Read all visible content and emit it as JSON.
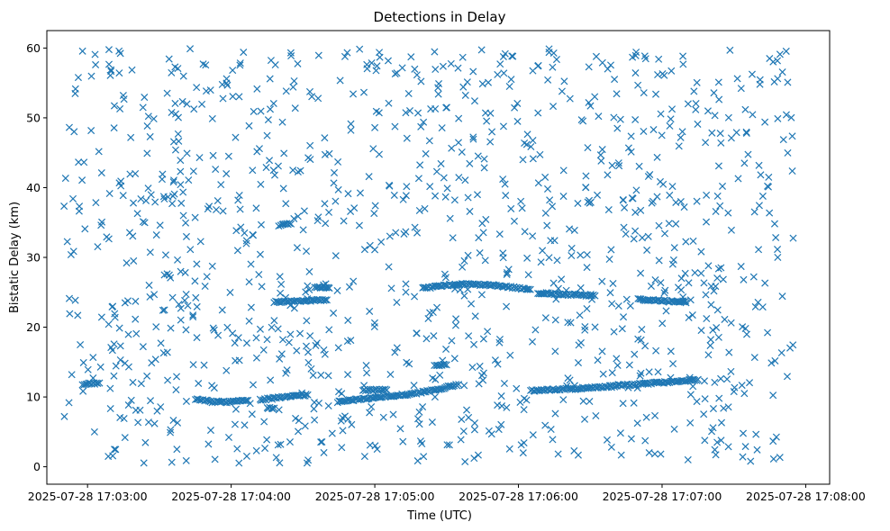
{
  "chart_data": {
    "type": "scatter",
    "title": "Detections in Delay",
    "xlabel": "Time (UTC)",
    "ylabel": "Bistatic Delay (km)",
    "marker": "x",
    "color": "#1f77b4",
    "grid": false,
    "legend": "none",
    "x_unit": "seconds after 2025-07-28 17:03:00 UTC",
    "xlim": [
      -17,
      310
    ],
    "ylim": [
      -2.5,
      62.5
    ],
    "x_ticks": [
      0,
      60,
      120,
      180,
      240,
      300
    ],
    "x_tick_labels": [
      "2025-07-28 17:03:00",
      "2025-07-28 17:04:00",
      "2025-07-28 17:05:00",
      "2025-07-28 17:06:00",
      "2025-07-28 17:07:00",
      "2025-07-28 17:08:00"
    ],
    "y_ticks": [
      0,
      10,
      20,
      30,
      40,
      50,
      60
    ],
    "y_tick_labels": [
      "0",
      "10",
      "20",
      "30",
      "40",
      "50",
      "60"
    ],
    "x_data_range": [
      -10,
      295
    ],
    "y_data_range": [
      0.5,
      60
    ],
    "noise_points_approx": 1150,
    "tracks": [
      {
        "x": [
          45,
          52,
          60,
          67
        ],
        "y": [
          9.7,
          9.3,
          9.3,
          9.5
        ]
      },
      {
        "x": [
          72,
          82,
          92
        ],
        "y": [
          9.6,
          10.0,
          10.3
        ]
      },
      {
        "x": [
          75,
          78
        ],
        "y": [
          8.4,
          8.4
        ]
      },
      {
        "x": [
          105,
          115,
          125,
          135,
          145,
          155
        ],
        "y": [
          9.4,
          9.7,
          10.1,
          10.4,
          11.0,
          11.8
        ]
      },
      {
        "x": [
          115,
          125
        ],
        "y": [
          11.0,
          11.0
        ]
      },
      {
        "x": [
          185,
          205,
          225,
          245,
          255
        ],
        "y": [
          10.9,
          11.2,
          11.7,
          12.2,
          12.5
        ]
      },
      {
        "x": [
          140,
          155,
          170,
          185
        ],
        "y": [
          25.6,
          26.2,
          26.0,
          25.4
        ]
      },
      {
        "x": [
          188,
          200,
          212
        ],
        "y": [
          24.9,
          24.7,
          24.5
        ]
      },
      {
        "x": [
          230,
          240,
          250
        ],
        "y": [
          24.0,
          23.8,
          23.5
        ]
      },
      {
        "x": [
          145,
          150
        ],
        "y": [
          14.5,
          14.6
        ]
      },
      {
        "x": [
          -2,
          5
        ],
        "y": [
          11.8,
          12.0
        ]
      },
      {
        "x": [
          80,
          85
        ],
        "y": [
          34.6,
          34.8
        ]
      },
      {
        "x": [
          95,
          101
        ],
        "y": [
          25.8,
          25.6
        ]
      },
      {
        "x": [
          78,
          100
        ],
        "y": [
          23.6,
          23.9
        ]
      }
    ]
  }
}
